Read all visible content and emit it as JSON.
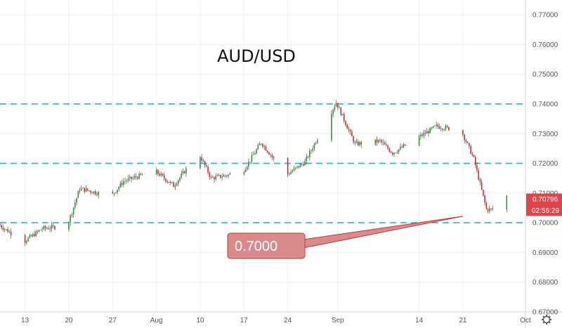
{
  "chart_data": {
    "type": "candlestick",
    "title": "AUD/USD",
    "ylim": [
      0.67,
      0.775
    ],
    "y_ticks": [
      "0.77000",
      "0.76000",
      "0.75000",
      "0.74000",
      "0.73000",
      "0.72000",
      "0.71000",
      "0.70000",
      "0.69000",
      "0.68000",
      "0.67000"
    ],
    "x_ticks": [
      "13",
      "20",
      "27",
      "Aug",
      "10",
      "17",
      "24",
      "Sep",
      "14",
      "21",
      "Oct"
    ],
    "x_tick_dates": [
      "2020-07-13",
      "2020-07-20",
      "2020-07-27",
      "2020-08-03",
      "2020-08-10",
      "2020-08-17",
      "2020-08-24",
      "2020-09-01",
      "2020-09-14",
      "2020-09-21",
      "2020-10-01"
    ],
    "x_range": [
      "2020-07-09",
      "2020-10-01"
    ],
    "horizontal_levels": [
      0.74,
      0.72,
      0.7
    ],
    "level_color": "#3fb6e0",
    "up_color": "#3a8a3a",
    "down_color": "#cc2a2a",
    "price_path": {
      "dates": [
        "2020-07-09",
        "2020-07-13",
        "2020-07-16",
        "2020-07-20",
        "2020-07-22",
        "2020-07-27",
        "2020-07-29",
        "2020-08-03",
        "2020-08-06",
        "2020-08-10",
        "2020-08-12",
        "2020-08-17",
        "2020-08-20",
        "2020-08-24",
        "2020-08-27",
        "2020-09-01",
        "2020-09-04",
        "2020-09-08",
        "2020-09-10",
        "2020-09-14",
        "2020-09-17",
        "2020-09-21",
        "2020-09-23",
        "2020-09-25",
        "2020-09-27",
        "2020-09-28"
      ],
      "values": [
        0.6995,
        0.6935,
        0.698,
        0.699,
        0.7115,
        0.709,
        0.714,
        0.7175,
        0.7125,
        0.7235,
        0.715,
        0.717,
        0.727,
        0.716,
        0.7205,
        0.7405,
        0.7265,
        0.7275,
        0.7235,
        0.7285,
        0.7325,
        0.731,
        0.7215,
        0.7045,
        0.7045,
        0.709
      ]
    },
    "last_price": "0.70796",
    "countdown": "02:56:29",
    "price_tag_color": "#e2434b",
    "callout": {
      "label": "0.7000",
      "date": "2020-09-21",
      "value": 0.7022,
      "fill": "#d98a8a",
      "stroke": "#c03a3a"
    }
  },
  "toolbar": {
    "settings_icon": "gear-icon"
  }
}
